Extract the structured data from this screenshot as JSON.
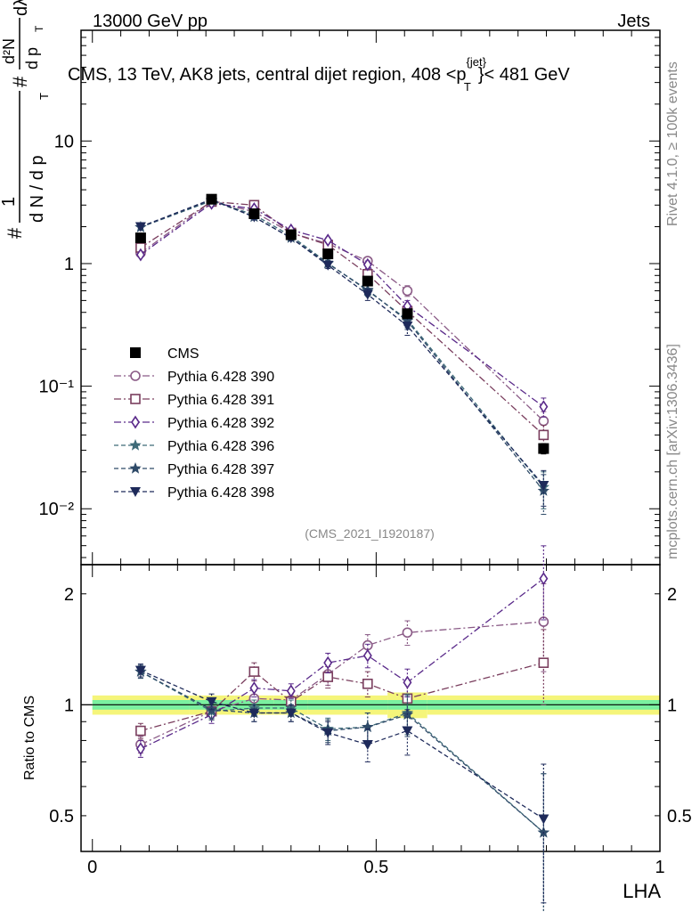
{
  "header": {
    "left": "13000 GeV pp",
    "right": "Jets",
    "title": "CMS, 13 TeV, AK8 jets, central dijet region, 408 <p",
    "title_sup": "{jet}",
    "title_sub": "T",
    "title_end": "}< 481 GeV"
  },
  "side": {
    "rivet": "Rivet 4.1.0, ≥ 100k events",
    "mcplots": "mcplots.cern.ch [arXiv:1306.3436]"
  },
  "watermark": "(CMS_2021_I1920187)",
  "main_ylabel": {
    "pre": "#",
    "one": "1",
    "dn": "d N / d p",
    "dn_sub": "T",
    "hash2": "#",
    "d2n": "d²N",
    "dpt": "d p",
    "dpt_sub": "T",
    "dlambda": "dλ"
  },
  "ratio_ylabel": "Ratio to CMS",
  "xlabel": "LHA",
  "colors": {
    "cms": "#000000",
    "p390": "#8a5a86",
    "p391": "#7a3e5e",
    "p392": "#5a2a8a",
    "p396": "#3e6a78",
    "p397": "#2e4a68",
    "p398": "#1e2a5a"
  },
  "chart_data": [
    {
      "type": "line",
      "panel": "main",
      "yscale": "log",
      "xlim": [
        -0.02,
        1.0
      ],
      "ylim": [
        0.0035,
        80
      ],
      "x": [
        0.085,
        0.21,
        0.285,
        0.35,
        0.415,
        0.485,
        0.555,
        0.795
      ],
      "ytick_labels": [
        "10⁻²",
        "10⁻¹",
        "1",
        "10"
      ],
      "ytick_values": [
        0.01,
        0.1,
        1,
        10
      ],
      "legend_position": "center-left",
      "series": [
        {
          "name": "CMS",
          "marker": "square",
          "values": [
            1.62,
            3.35,
            2.55,
            1.72,
            1.2,
            0.72,
            0.39,
            0.031
          ],
          "err": [
            0.06,
            0.08,
            0.08,
            0.06,
            0.05,
            0.04,
            0.03,
            0.003
          ]
        },
        {
          "name": "Pythia 6.428 390",
          "marker": "circle",
          "values": [
            1.22,
            3.2,
            2.65,
            1.78,
            1.45,
            1.05,
            0.6,
            0.052
          ],
          "err": [
            0.05,
            0.08,
            0.08,
            0.06,
            0.07,
            0.07,
            0.06,
            0.01
          ]
        },
        {
          "name": "Pythia 6.428 391",
          "marker": "open-square",
          "values": [
            1.35,
            3.2,
            3.0,
            1.78,
            1.42,
            0.82,
            0.41,
            0.04
          ],
          "err": [
            0.05,
            0.08,
            0.1,
            0.06,
            0.07,
            0.06,
            0.05,
            0.008
          ]
        },
        {
          "name": "Pythia 6.428 392",
          "marker": "diamond",
          "values": [
            1.18,
            3.1,
            2.8,
            1.88,
            1.55,
            0.98,
            0.45,
            0.068
          ],
          "err": [
            0.05,
            0.08,
            0.09,
            0.06,
            0.07,
            0.07,
            0.05,
            0.012
          ]
        },
        {
          "name": "Pythia 6.428 396",
          "marker": "star",
          "values": [
            1.98,
            3.25,
            2.5,
            1.68,
            1.01,
            0.6,
            0.35,
            0.015
          ],
          "err": [
            0.06,
            0.08,
            0.08,
            0.06,
            0.06,
            0.06,
            0.05,
            0.005
          ]
        },
        {
          "name": "Pythia 6.428 397",
          "marker": "star-dark",
          "values": [
            1.98,
            3.3,
            2.4,
            1.62,
            1.0,
            0.61,
            0.34,
            0.014
          ],
          "err": [
            0.06,
            0.08,
            0.08,
            0.06,
            0.06,
            0.06,
            0.05,
            0.005
          ]
        },
        {
          "name": "Pythia 6.428 398",
          "marker": "triangle-down",
          "values": [
            2.0,
            3.35,
            2.4,
            1.62,
            0.97,
            0.56,
            0.31,
            0.0155
          ],
          "err": [
            0.06,
            0.08,
            0.08,
            0.06,
            0.06,
            0.06,
            0.05,
            0.005
          ]
        }
      ]
    },
    {
      "type": "line",
      "panel": "ratio",
      "yscale": "log",
      "xlim": [
        -0.02,
        1.0
      ],
      "ylim": [
        0.4,
        2.4
      ],
      "ylabel": "Ratio to CMS",
      "xlabel": "LHA",
      "ytick_labels": [
        "0.5",
        "1",
        "2"
      ],
      "ytick_values": [
        0.5,
        1,
        2
      ],
      "xtick_labels": [
        "0",
        "0.5",
        "1"
      ],
      "xtick_values": [
        0,
        0.5,
        1
      ],
      "x": [
        0.085,
        0.21,
        0.285,
        0.35,
        0.415,
        0.485,
        0.555,
        0.795
      ],
      "bins": [
        0.0,
        0.17,
        0.25,
        0.32,
        0.38,
        0.45,
        0.52,
        0.59,
        1.0
      ],
      "band_inner": [
        0.03,
        0.03,
        0.03,
        0.03,
        0.03,
        0.03,
        0.03,
        0.03
      ],
      "band_outer": [
        0.06,
        0.06,
        0.06,
        0.06,
        0.06,
        0.06,
        0.08,
        0.06
      ],
      "series": [
        {
          "name": "Pythia 6.428 390",
          "values": [
            0.78,
            0.96,
            1.04,
            1.03,
            1.21,
            1.45,
            1.57,
            1.68
          ],
          "err": [
            0.04,
            0.05,
            0.05,
            0.05,
            0.08,
            0.1,
            0.12,
            0.45
          ]
        },
        {
          "name": "Pythia 6.428 391",
          "values": [
            0.85,
            0.96,
            1.23,
            1.02,
            1.19,
            1.14,
            1.04,
            1.3
          ],
          "err": [
            0.04,
            0.05,
            0.07,
            0.05,
            0.08,
            0.09,
            0.1,
            0.3
          ]
        },
        {
          "name": "Pythia 6.428 392",
          "values": [
            0.76,
            0.94,
            1.11,
            1.09,
            1.3,
            1.36,
            1.15,
            2.2
          ],
          "err": [
            0.04,
            0.05,
            0.06,
            0.05,
            0.08,
            0.1,
            0.1,
            0.5
          ]
        },
        {
          "name": "Pythia 6.428 396",
          "values": [
            1.23,
            0.96,
            0.98,
            0.98,
            0.86,
            0.87,
            0.95,
            0.45
          ],
          "err": [
            0.05,
            0.05,
            0.05,
            0.05,
            0.06,
            0.08,
            0.12,
            0.2
          ]
        },
        {
          "name": "Pythia 6.428 397",
          "values": [
            1.23,
            0.97,
            0.95,
            0.95,
            0.85,
            0.87,
            0.94,
            0.45
          ],
          "err": [
            0.05,
            0.05,
            0.05,
            0.05,
            0.06,
            0.08,
            0.12,
            0.2
          ]
        },
        {
          "name": "Pythia 6.428 398",
          "values": [
            1.24,
            1.02,
            0.95,
            0.95,
            0.84,
            0.78,
            0.85,
            0.49
          ],
          "err": [
            0.05,
            0.05,
            0.05,
            0.05,
            0.06,
            0.08,
            0.12,
            0.2
          ]
        }
      ]
    }
  ]
}
